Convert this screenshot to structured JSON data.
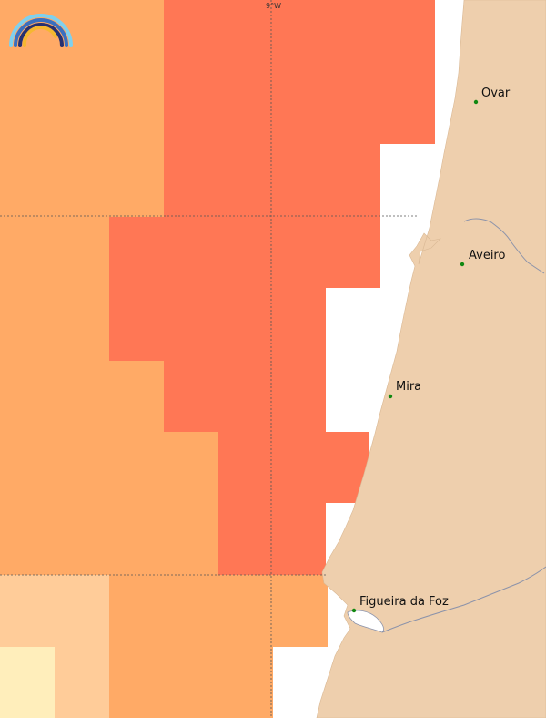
{
  "map": {
    "grid_label_lon": "9°W",
    "cities": [
      {
        "name": "Ovar"
      },
      {
        "name": "Aveiro"
      },
      {
        "name": "Mira"
      },
      {
        "name": "Figueira da Foz"
      }
    ],
    "colors": {
      "level_highest": "#ff7755",
      "level_high": "#ffaa66",
      "level_medium": "#ffcc99",
      "level_low": "#ffeebb",
      "land": "#eecfad",
      "sea": "#ffffff",
      "city_dot": "#118811",
      "gridline": "#555555",
      "river": "#8c93aa"
    }
  }
}
